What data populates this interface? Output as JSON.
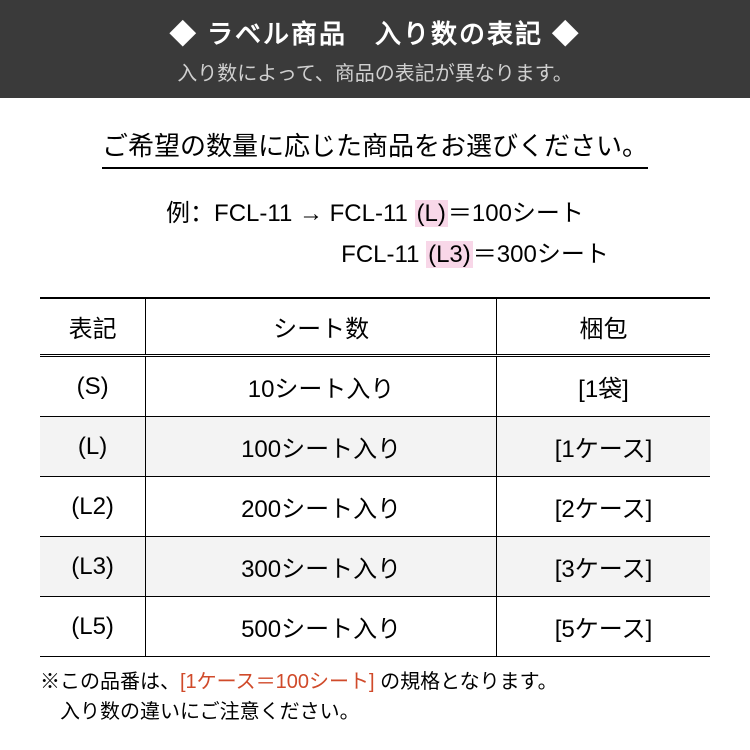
{
  "header": {
    "title": "◆ ラベル商品　入り数の表記 ◆",
    "subtitle": "入り数によって、商品の表記が異なります。"
  },
  "instruction": "ご希望の数量に応じた商品をお選びください。",
  "example": {
    "prefix": "例：FCL-11 → FCL-11 ",
    "hl1": "(L)",
    "mid1": "＝100シート",
    "line2_prefix": "FCL-11 ",
    "hl2": "(L3)",
    "mid2": "＝300シート"
  },
  "table": {
    "headers": [
      "表記",
      "シート数",
      "梱包"
    ],
    "rows": [
      [
        "(S)",
        "10シート入り",
        "[1袋]"
      ],
      [
        "(L)",
        "100シート入り",
        "[1ケース]"
      ],
      [
        "(L2)",
        "200シート入り",
        "[2ケース]"
      ],
      [
        "(L3)",
        "300シート入り",
        "[3ケース]"
      ],
      [
        "(L5)",
        "500シート入り",
        "[5ケース]"
      ]
    ]
  },
  "note": {
    "p1_a": "※この品番は、",
    "p1_red": "[1ケース＝100シート]",
    "p1_b": " の規格となります。",
    "p2": "　入り数の違いにご注意ください。"
  },
  "style": {
    "header_bg": "#3a3a3a",
    "header_fg": "#ffffff",
    "highlight_bg": "#f8d7e8",
    "row_alt_bg": "#f3f3f3",
    "note_red": "#d04a2a",
    "title_fontsize": 26,
    "body_fontsize": 24,
    "note_fontsize": 20
  }
}
